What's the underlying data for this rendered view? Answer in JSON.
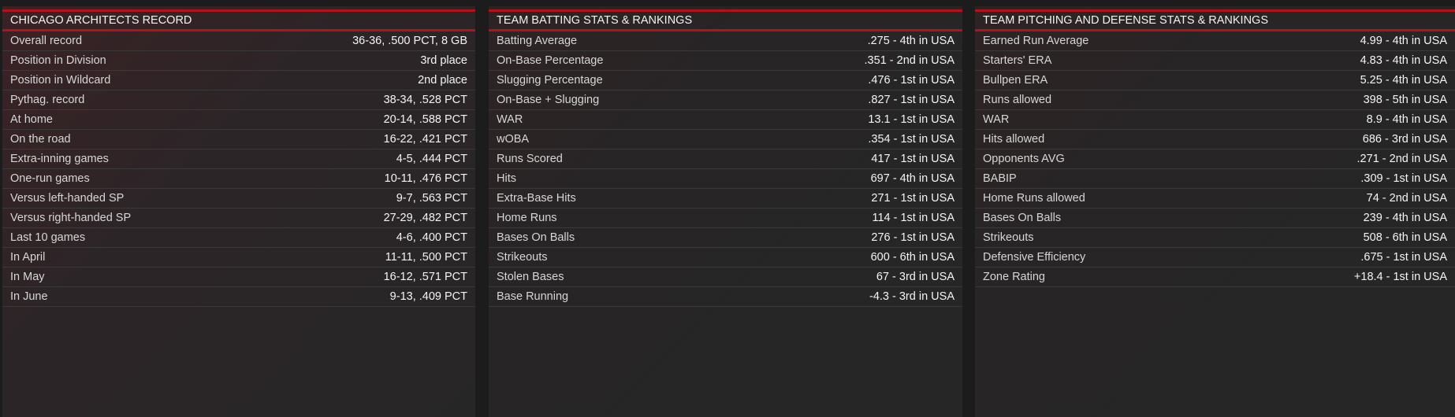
{
  "panels": [
    {
      "title": "CHICAGO ARCHITECTS RECORD",
      "rows": [
        [
          "Overall record",
          "36-36, .500 PCT, 8 GB"
        ],
        [
          "Position in Division",
          "3rd place"
        ],
        [
          "Position in Wildcard",
          "2nd place"
        ],
        [
          "Pythag. record",
          "38-34, .528 PCT"
        ],
        [
          "At home",
          "20-14, .588 PCT"
        ],
        [
          "On the road",
          "16-22, .421 PCT"
        ],
        [
          "Extra-inning games",
          "4-5, .444 PCT"
        ],
        [
          "One-run games",
          "10-11, .476 PCT"
        ],
        [
          "Versus left-handed SP",
          "9-7, .563 PCT"
        ],
        [
          "Versus right-handed SP",
          "27-29, .482 PCT"
        ],
        [
          "Last 10 games",
          "4-6, .400 PCT"
        ],
        [
          "In April",
          "11-11, .500 PCT"
        ],
        [
          "In May",
          "16-12, .571 PCT"
        ],
        [
          "In June",
          "9-13, .409 PCT"
        ]
      ]
    },
    {
      "title": "TEAM BATTING STATS & RANKINGS",
      "rows": [
        [
          "Batting Average",
          ".275 - 4th in USA"
        ],
        [
          "On-Base Percentage",
          ".351 - 2nd in USA"
        ],
        [
          "Slugging Percentage",
          ".476 - 1st in USA"
        ],
        [
          "On-Base + Slugging",
          ".827 - 1st in USA"
        ],
        [
          "WAR",
          "13.1 - 1st in USA"
        ],
        [
          "wOBA",
          ".354 - 1st in USA"
        ],
        [
          "Runs Scored",
          "417 - 1st in USA"
        ],
        [
          "Hits",
          "697 - 4th in USA"
        ],
        [
          "Extra-Base Hits",
          "271 - 1st in USA"
        ],
        [
          "Home Runs",
          "114 - 1st in USA"
        ],
        [
          "Bases On Balls",
          "276 - 1st in USA"
        ],
        [
          "Strikeouts",
          "600 - 6th in USA"
        ],
        [
          "Stolen Bases",
          "67 - 3rd in USA"
        ],
        [
          "Base Running",
          "-4.3 - 3rd in USA"
        ]
      ]
    },
    {
      "title": "TEAM PITCHING AND DEFENSE STATS & RANKINGS",
      "rows": [
        [
          "Earned Run Average",
          "4.99 - 4th in USA"
        ],
        [
          "Starters' ERA",
          "4.83 - 4th in USA"
        ],
        [
          "Bullpen ERA",
          "5.25 - 4th in USA"
        ],
        [
          "Runs allowed",
          "398 - 5th in USA"
        ],
        [
          "WAR",
          "8.9 - 4th in USA"
        ],
        [
          "Hits allowed",
          "686 - 3rd in USA"
        ],
        [
          "Opponents AVG",
          ".271 - 2nd in USA"
        ],
        [
          "BABIP",
          ".309 - 1st in USA"
        ],
        [
          "Home Runs allowed",
          "74 - 2nd in USA"
        ],
        [
          "Bases On Balls",
          "239 - 4th in USA"
        ],
        [
          "Strikeouts",
          "508 - 6th in USA"
        ],
        [
          "Defensive Efficiency",
          ".675 - 1st in USA"
        ],
        [
          "Zone Rating",
          "+18.4 - 1st in USA"
        ]
      ]
    }
  ]
}
